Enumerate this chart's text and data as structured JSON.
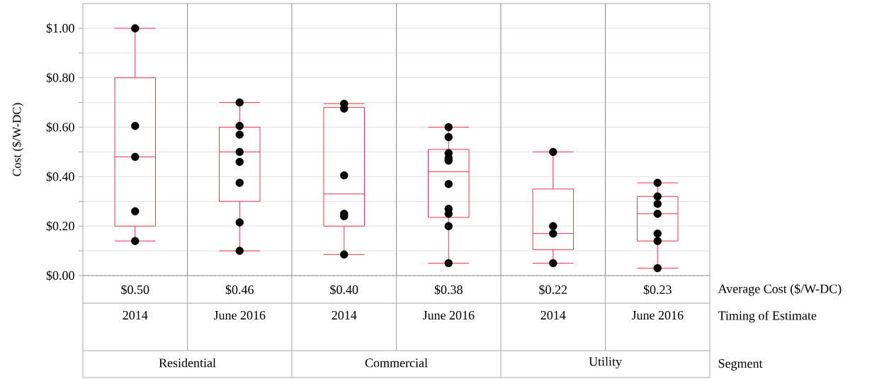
{
  "chart_data": {
    "type": "box",
    "categories": [
      "2014",
      "June 2016",
      "2014",
      "June 2016",
      "2014",
      "June 2016"
    ],
    "ylabel": "Cost ($/W-DC)",
    "ylim": [
      0,
      1.1
    ],
    "yticks": [
      {
        "value": 0,
        "label": "$0.00"
      },
      {
        "value": 0.1,
        "label": null
      },
      {
        "value": 0.2,
        "label": "$0.20"
      },
      {
        "value": 0.3,
        "label": null
      },
      {
        "value": 0.4,
        "label": "$0.40"
      },
      {
        "value": 0.5,
        "label": null
      },
      {
        "value": 0.6,
        "label": "$0.60"
      },
      {
        "value": 0.7,
        "label": null
      },
      {
        "value": 0.8,
        "label": "$0.80"
      },
      {
        "value": 0.9,
        "label": null
      },
      {
        "value": 1.0,
        "label": "$1.00"
      }
    ],
    "grid": "y",
    "annotations": [
      "Average Cost ($/W-DC)",
      "Timing of Estimate",
      "Segment",
      "Residential",
      "Commercial",
      "Utility"
    ],
    "series": [
      {
        "type": "box",
        "color": "#e8364f",
        "value_labels": [
          "$0.50",
          "$0.46",
          "$0.40",
          "$0.38",
          "$0.22",
          "$0.23"
        ],
        "boxes": [
          {
            "low": 0.14,
            "q1": 0.2,
            "median": 0.48,
            "q3": 0.8,
            "high": 1.0
          },
          {
            "low": 0.1,
            "q1": 0.3,
            "median": 0.5,
            "q3": 0.6,
            "high": 0.7
          },
          {
            "low": 0.085,
            "q1": 0.2,
            "median": 0.33,
            "q3": 0.68,
            "high": 0.695
          },
          {
            "low": 0.05,
            "q1": 0.235,
            "median": 0.42,
            "q3": 0.51,
            "high": 0.6
          },
          {
            "low": 0.05,
            "q1": 0.105,
            "median": 0.17,
            "q3": 0.35,
            "high": 0.5
          },
          {
            "low": 0.03,
            "q1": 0.14,
            "median": 0.25,
            "q3": 0.32,
            "high": 0.375
          }
        ]
      },
      {
        "type": "scatter",
        "color": "#000000",
        "marker": "circle",
        "values": [
          1.0,
          0.7,
          0.695,
          0.6,
          0.5,
          0.375
        ]
      },
      {
        "type": "scatter",
        "color": "#000000",
        "marker": "circle",
        "values": [
          0.605,
          0.605,
          0.675,
          0.56,
          0.2,
          0.32
        ]
      },
      {
        "type": "scatter",
        "color": "#000000",
        "marker": "circle",
        "values": [
          0.48,
          0.57,
          0.405,
          0.495,
          0.17,
          0.29
        ]
      },
      {
        "type": "scatter",
        "color": "#000000",
        "marker": "circle",
        "values": [
          0.26,
          0.5,
          0.25,
          0.475,
          0.05,
          0.25
        ]
      },
      {
        "type": "scatter",
        "color": "#000000",
        "marker": "circle",
        "values": [
          0.14,
          0.46,
          0.24,
          0.465,
          null,
          0.17
        ]
      },
      {
        "type": "scatter",
        "color": "#000000",
        "marker": "circle",
        "values": [
          null,
          0.375,
          0.085,
          0.37,
          null,
          0.14
        ]
      },
      {
        "type": "scatter",
        "color": "#000000",
        "marker": "circle",
        "values": [
          null,
          0.215,
          null,
          0.27,
          null,
          0.03
        ]
      },
      {
        "type": "scatter",
        "color": "#000000",
        "marker": "circle",
        "values": [
          null,
          0.1,
          null,
          0.25,
          null,
          null
        ]
      },
      {
        "type": "scatter",
        "color": "#000000",
        "marker": "circle",
        "values": [
          null,
          null,
          null,
          0.2,
          null,
          null
        ]
      },
      {
        "type": "scatter",
        "color": "#000000",
        "marker": "circle",
        "values": [
          null,
          null,
          null,
          0.05,
          null,
          null
        ]
      }
    ]
  }
}
